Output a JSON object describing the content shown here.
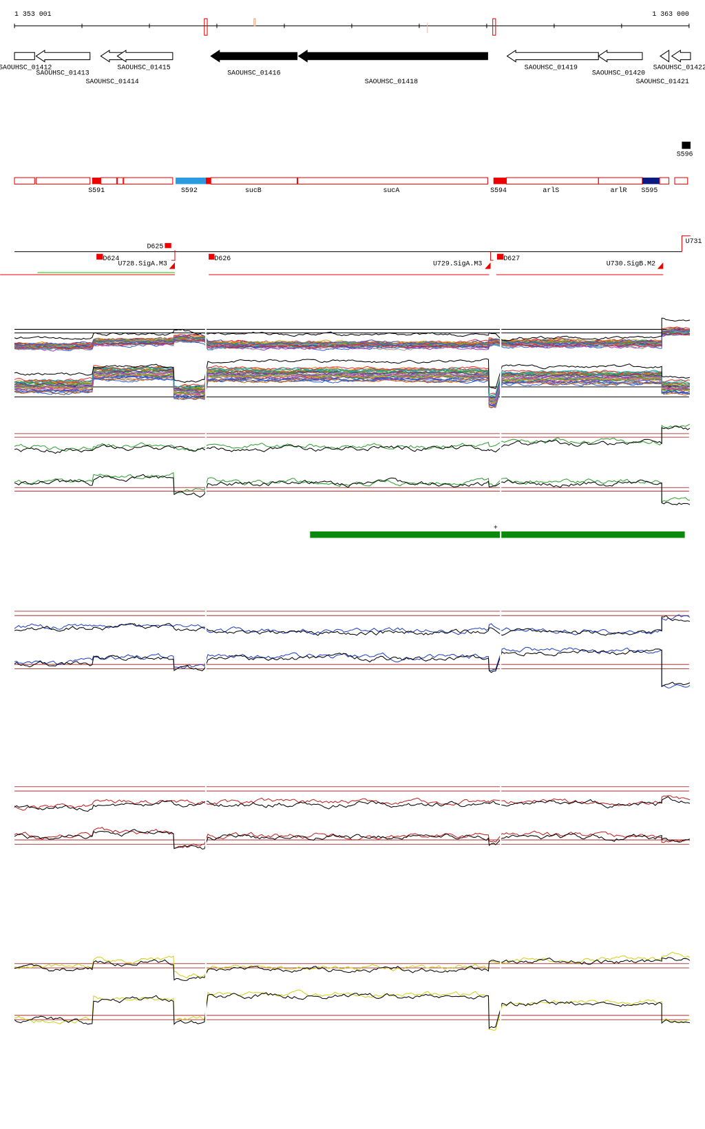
{
  "ruler": {
    "start": "1 353 001",
    "end": "1 363 000"
  },
  "genes": [
    "SAOUHSC_01412",
    "SAOUHSC_01413",
    "SAOUHSC_01414",
    "SAOUHSC_01415",
    "SAOUHSC_01416",
    "SAOUHSC_01418",
    "SAOUHSC_01419",
    "SAOUHSC_01420",
    "SAOUHSC_01421",
    "SAOUHSC_01422"
  ],
  "segments": [
    "S591",
    "S592",
    "sucB",
    "sucA",
    "S594",
    "arlS",
    "arlR",
    "S595",
    "S596"
  ],
  "upstream": [
    "D625",
    "U731",
    "D624",
    "U728.SigA.M3",
    "D626",
    "U729.SigA.M3",
    "D627",
    "U730.SigB.M2"
  ],
  "marker": "+"
}
